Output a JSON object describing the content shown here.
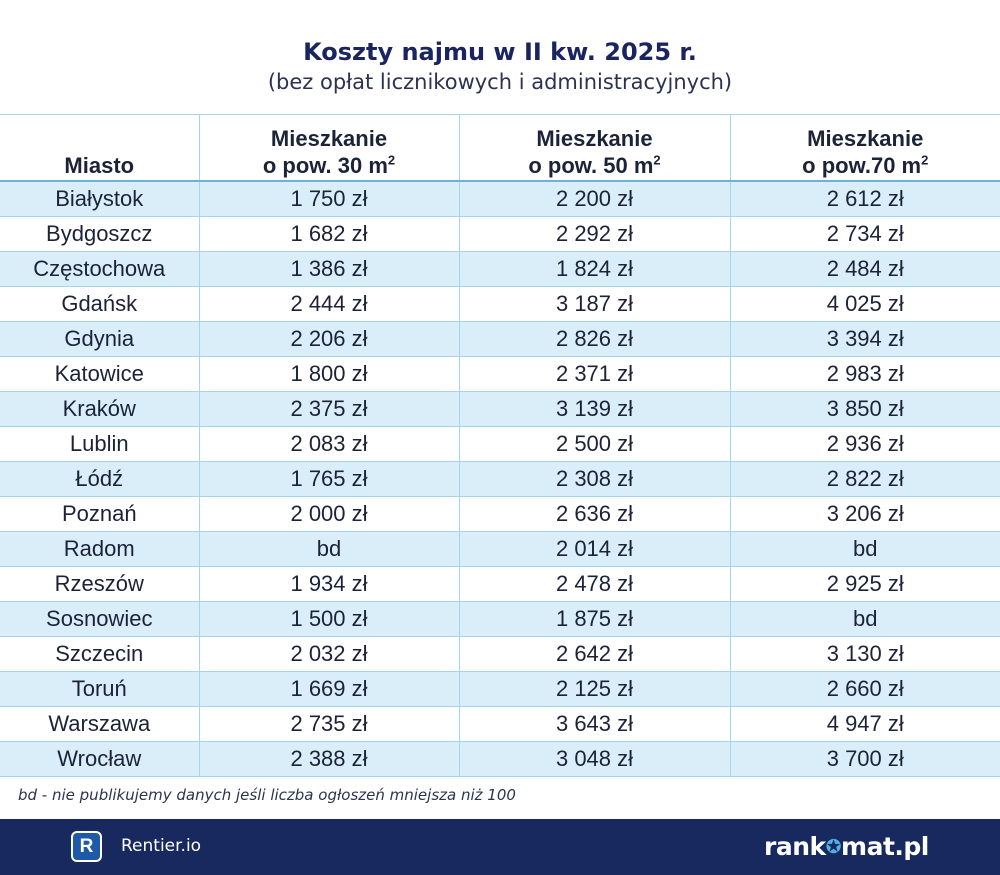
{
  "title": "Koszty najmu w II kw. 2025 r.",
  "subtitle": "(bez opłat licznikowych i administracyjnych)",
  "table": {
    "headers": {
      "city": "Miasto",
      "col30_line1": "Mieszkanie",
      "col30_line2": "o pow. 30 m",
      "col50_line1": "Mieszkanie",
      "col50_line2": "o pow. 50 m",
      "col70_line1": "Mieszkanie",
      "col70_line2": "o pow.70 m",
      "sup": "2"
    },
    "rows": [
      {
        "city": "Białystok",
        "m30": "1 750 zł",
        "m50": "2 200 zł",
        "m70": "2 612 zł"
      },
      {
        "city": "Bydgoszcz",
        "m30": "1 682 zł",
        "m50": "2 292 zł",
        "m70": "2 734 zł"
      },
      {
        "city": "Częstochowa",
        "m30": "1 386 zł",
        "m50": "1 824 zł",
        "m70": "2 484 zł"
      },
      {
        "city": "Gdańsk",
        "m30": "2 444 zł",
        "m50": "3 187 zł",
        "m70": "4 025 zł"
      },
      {
        "city": "Gdynia",
        "m30": "2 206 zł",
        "m50": "2 826 zł",
        "m70": "3 394 zł"
      },
      {
        "city": "Katowice",
        "m30": "1 800 zł",
        "m50": "2 371 zł",
        "m70": "2 983 zł"
      },
      {
        "city": "Kraków",
        "m30": "2 375 zł",
        "m50": "3 139 zł",
        "m70": "3 850 zł"
      },
      {
        "city": "Lublin",
        "m30": "2 083 zł",
        "m50": "2 500 zł",
        "m70": "2 936 zł"
      },
      {
        "city": "Łódź",
        "m30": "1 765 zł",
        "m50": "2 308 zł",
        "m70": "2 822 zł"
      },
      {
        "city": "Poznań",
        "m30": "2 000 zł",
        "m50": "2 636 zł",
        "m70": "3 206 zł"
      },
      {
        "city": "Radom",
        "m30": "bd",
        "m50": "2 014 zł",
        "m70": "bd"
      },
      {
        "city": "Rzeszów",
        "m30": "1 934 zł",
        "m50": "2 478 zł",
        "m70": "2 925 zł"
      },
      {
        "city": "Sosnowiec",
        "m30": "1 500 zł",
        "m50": "1 875 zł",
        "m70": "bd"
      },
      {
        "city": "Szczecin",
        "m30": "2 032 zł",
        "m50": "2 642 zł",
        "m70": "3 130 zł"
      },
      {
        "city": "Toruń",
        "m30": "1 669 zł",
        "m50": "2 125 zł",
        "m70": "2 660 zł"
      },
      {
        "city": "Warszawa",
        "m30": "2 735 zł",
        "m50": "3 643 zł",
        "m70": "4 947 zł"
      },
      {
        "city": "Wrocław",
        "m30": "2 388 zł",
        "m50": "3 048 zł",
        "m70": "3 700 zł"
      }
    ]
  },
  "footnote": "bd - nie publikujemy danych jeśli liczba ogłoszeń mniejsza niż 100",
  "footer": {
    "rentier_letter": "R",
    "rentier_name": "Rentier.io",
    "rankomat_part1": "rank",
    "rankomat_star": "✪",
    "rankomat_part2": "mat.pl"
  },
  "colors": {
    "title": "#1a2560",
    "row_stripe": "#d9eef8",
    "grid": "#a9d3ea",
    "footer_bg": "#17295e",
    "rentier_logo": "#1f5aa8"
  },
  "icons": [
    "rentier-logo-icon",
    "rankomat-star-icon"
  ]
}
